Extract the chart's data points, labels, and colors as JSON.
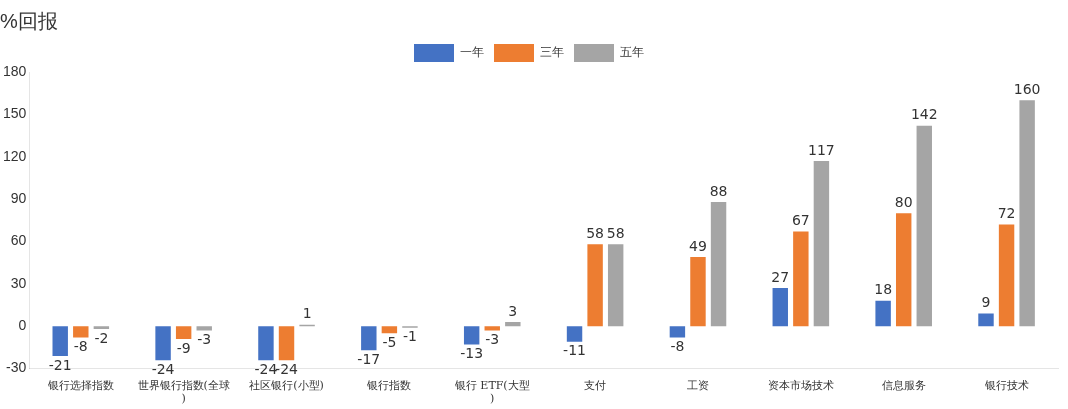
{
  "chart_data": {
    "type": "bar",
    "title": "%回报",
    "categories": [
      "银行选择指数",
      "世界银行指数(全球)",
      "社区银行(小型)",
      "银行指数",
      "银行 ETF(大型)",
      "支付",
      "工资",
      "资本市场技术",
      "信息服务",
      "银行技术"
    ],
    "series": [
      {
        "name": "一年",
        "color": "#4472c4",
        "values": [
          -21,
          -24,
          -24,
          -17,
          -13,
          -11,
          -8,
          27,
          18,
          9
        ]
      },
      {
        "name": "三年",
        "color": "#ed7d31",
        "values": [
          -8,
          -9,
          -24,
          -5,
          -3,
          58,
          49,
          67,
          80,
          72
        ]
      },
      {
        "name": "五年",
        "color": "#a5a5a5",
        "values": [
          -2,
          -3,
          1,
          -1,
          3,
          58,
          88,
          117,
          142,
          160
        ]
      }
    ],
    "ylim": [
      -30,
      180
    ],
    "yticks": [
      -30,
      0,
      30,
      60,
      90,
      120,
      150,
      180
    ],
    "grid": false,
    "legend": "top",
    "data_labels": true
  }
}
